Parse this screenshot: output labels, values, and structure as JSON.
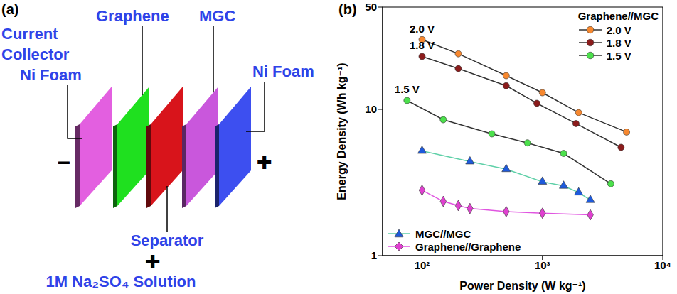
{
  "diagram": {
    "label": "(a)",
    "current_collector_heading": [
      "Current",
      "Collector"
    ],
    "layers": [
      {
        "name": "Ni Foam",
        "color": "#e35fe0"
      },
      {
        "name": "Graphene",
        "color": "#1fe01f"
      },
      {
        "name": "Separator",
        "color": "#d8141b"
      },
      {
        "name": "MGC",
        "color": "#c957dc"
      },
      {
        "name": "Ni Foam",
        "color": "#3d4ff0"
      }
    ],
    "terminals": {
      "negative": "−",
      "positive": "✚"
    },
    "electrolyte": {
      "symbol": "✚",
      "label": "1M Na₂SO₄ Solution"
    }
  },
  "chart_data": {
    "panel_label": "(b)",
    "type": "line",
    "log": true,
    "grid": false,
    "x_label": "Power Density (W kg⁻¹)",
    "y_label": "Energy Density (Wh kg⁻¹)",
    "xlim": [
      47,
      10000
    ],
    "ylim": [
      1,
      50
    ],
    "xticks": [
      {
        "value": 100,
        "label": "10²"
      },
      {
        "value": 1000,
        "label": "10³"
      },
      {
        "value": 10000,
        "label": "10⁴"
      }
    ],
    "yticks": [
      1,
      10,
      50
    ],
    "legend": "upper right",
    "legend_title": "Graphene//MGC",
    "annotations": [
      "2.0 V",
      "1.8 V",
      "1.5 V"
    ],
    "series": [
      {
        "name": "2.0 V",
        "color": "#f7882f",
        "marker": "circle",
        "line_style": "solid",
        "legend": "upper right",
        "x": [
          100,
          200,
          500,
          1000,
          2000,
          5000
        ],
        "values": [
          30,
          24,
          17,
          13,
          9.5,
          7
        ]
      },
      {
        "name": "1.8 V",
        "color": "#8b1c1c",
        "marker": "circle",
        "line_style": "solid",
        "legend": "upper right",
        "x": [
          100,
          200,
          500,
          900,
          1900,
          4500
        ],
        "values": [
          23,
          19,
          14.5,
          11,
          8,
          5.5
        ]
      },
      {
        "name": "1.5 V",
        "color": "#4ce04c",
        "marker": "circle",
        "line_style": "solid",
        "legend": "upper right",
        "x": [
          75,
          150,
          380,
          750,
          1500,
          3700
        ],
        "values": [
          11.5,
          8.5,
          6.8,
          5.9,
          5,
          3.1
        ]
      },
      {
        "name": "MGC//MGC",
        "color": "#1e5adc",
        "marker": "triangle",
        "line_style": "solid",
        "legend": "lower left",
        "x": [
          100,
          250,
          500,
          1000,
          1500,
          2000,
          2500
        ],
        "values": [
          5.2,
          4.4,
          3.9,
          3.2,
          3,
          2.7,
          2.4
        ]
      },
      {
        "name": "Graphene//Graphene",
        "color": "#e040d0",
        "marker": "diamond",
        "line_style": "solid",
        "legend": "lower left",
        "x": [
          100,
          150,
          200,
          250,
          500,
          1000,
          2500
        ],
        "values": [
          2.8,
          2.35,
          2.2,
          2.1,
          2,
          1.95,
          1.9
        ]
      }
    ]
  }
}
